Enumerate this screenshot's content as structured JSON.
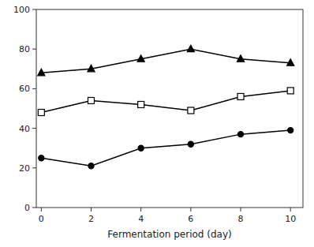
{
  "chart_data": {
    "type": "line",
    "xlabel": "Fermentation period (day)",
    "x": [
      0,
      2,
      4,
      6,
      8,
      10
    ],
    "series": [
      {
        "color": "#000000",
        "marker": "circle",
        "values": [
          25,
          21,
          30,
          32,
          37,
          39
        ]
      },
      {
        "color": "#000000",
        "marker": "open-square",
        "values": [
          48,
          54,
          52,
          49,
          56,
          59
        ]
      },
      {
        "color": "#000000",
        "marker": "triangle",
        "values": [
          68,
          70,
          75,
          80,
          75,
          73
        ]
      }
    ],
    "xlim": [
      -0.2,
      10.5
    ],
    "ylim": [
      0,
      100
    ],
    "xticks": [
      0,
      2,
      4,
      6,
      8,
      10
    ],
    "yticks": [
      0,
      20,
      40,
      60,
      80,
      100
    ],
    "grid": false
  }
}
